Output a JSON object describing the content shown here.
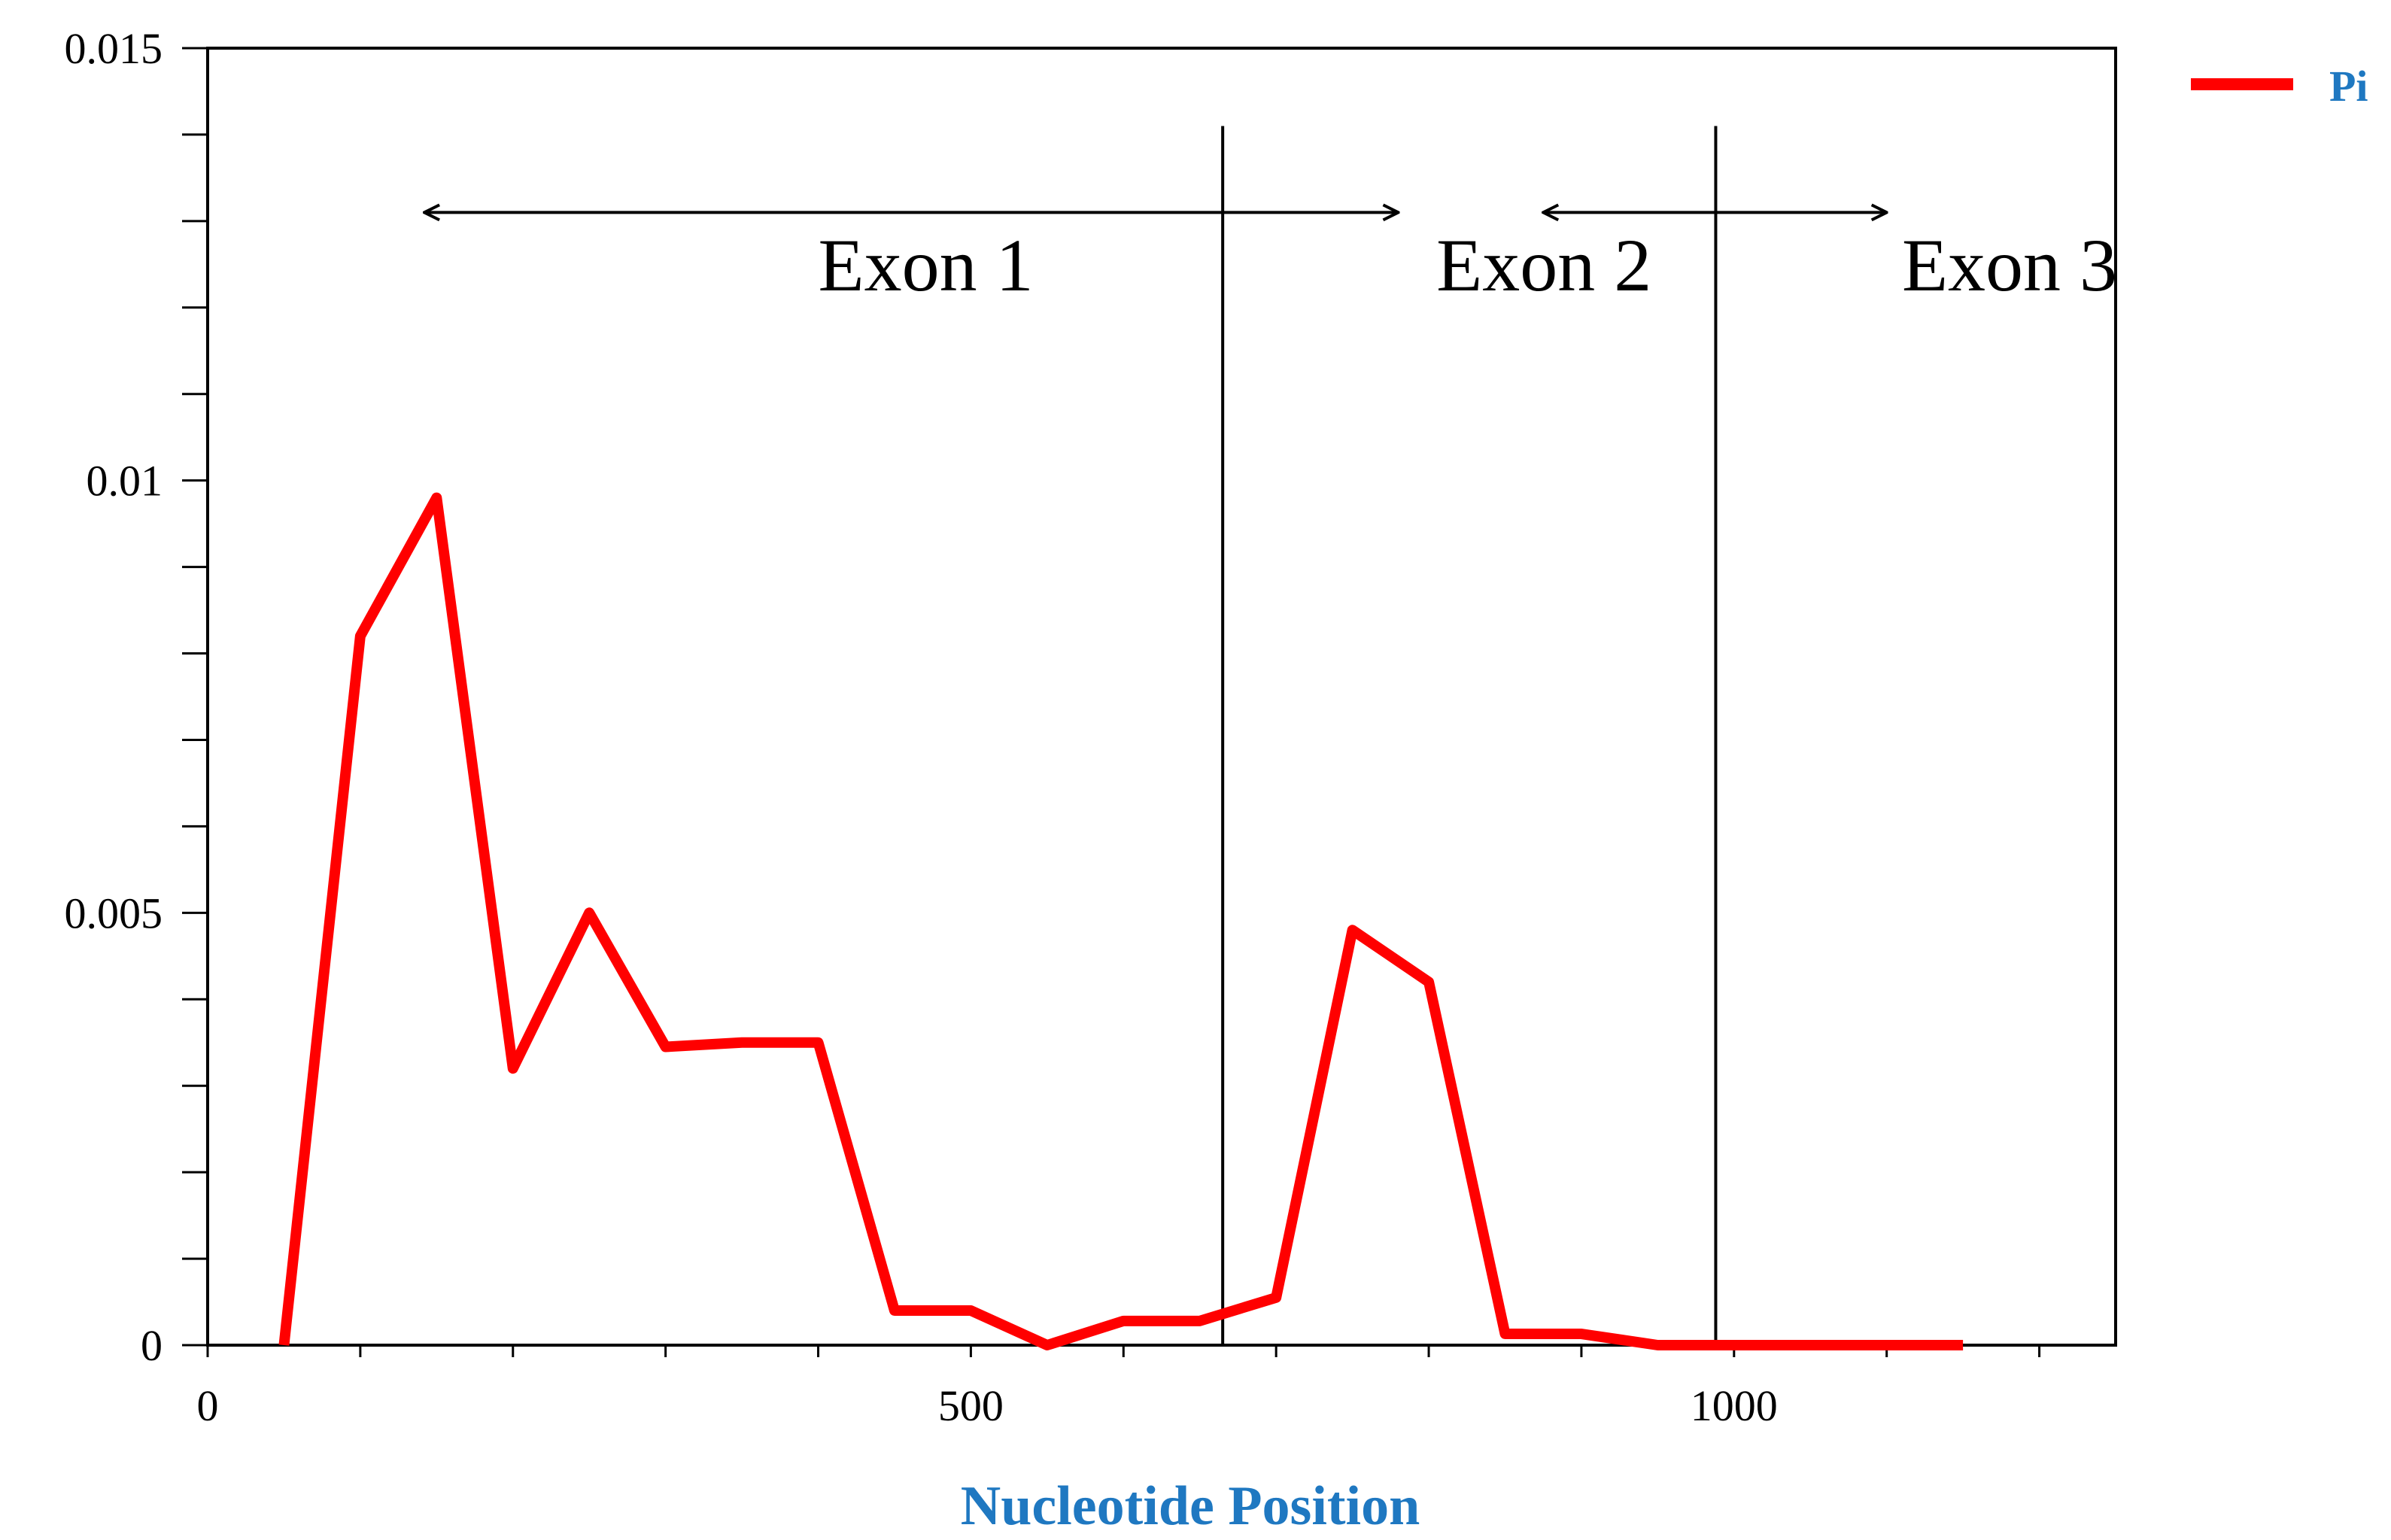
{
  "chart_data": {
    "type": "line",
    "title": "",
    "xlabel": "Nucleotide Position",
    "ylabel": "",
    "xlim": [
      0,
      1250
    ],
    "ylim": [
      0,
      0.015
    ],
    "x_ticks": [
      0,
      500,
      1000
    ],
    "y_ticks": [
      0,
      0.005,
      0.01,
      0.015
    ],
    "x_tick_labels": [
      "0",
      "500",
      "1000"
    ],
    "y_tick_labels": [
      "0",
      "0.005",
      "0.01",
      "0.015"
    ],
    "grid": false,
    "legend_position": "top-right",
    "series": [
      {
        "name": "Pi",
        "color": "#ff0000",
        "x": [
          50,
          100,
          150,
          200,
          250,
          300,
          350,
          400,
          450,
          500,
          550,
          600,
          650,
          700,
          750,
          800,
          850,
          900,
          950,
          1000,
          1050,
          1100,
          1150
        ],
        "y": [
          0.0,
          0.0082,
          0.0098,
          0.0032,
          0.005,
          0.00345,
          0.0035,
          0.0035,
          0.0004,
          0.0004,
          0.0,
          0.00028,
          0.00028,
          0.00055,
          0.0048,
          0.0042,
          0.00013,
          0.00013,
          0.0,
          0.0,
          0.0,
          0.0,
          0.0
        ]
      }
    ],
    "boundaries": [
      665,
      988
    ],
    "regions": [
      {
        "label": "Exon 1",
        "arrow_from": 142,
        "arrow_to": 780,
        "label_x": 400,
        "label_y": 0.0122
      },
      {
        "label": "Exon 2",
        "arrow_from": 780,
        "arrow_to": 875,
        "label_x": 805,
        "label_y": 0.0122
      },
      {
        "label": "Exon 3",
        "arrow_from": 875,
        "arrow_to": 1100,
        "label_x": 1110,
        "label_y": 0.0122
      }
    ],
    "arrow_y": 0.0131,
    "xlabel_color": "#1f78c1",
    "legend_text_color": "#1f78c1"
  }
}
